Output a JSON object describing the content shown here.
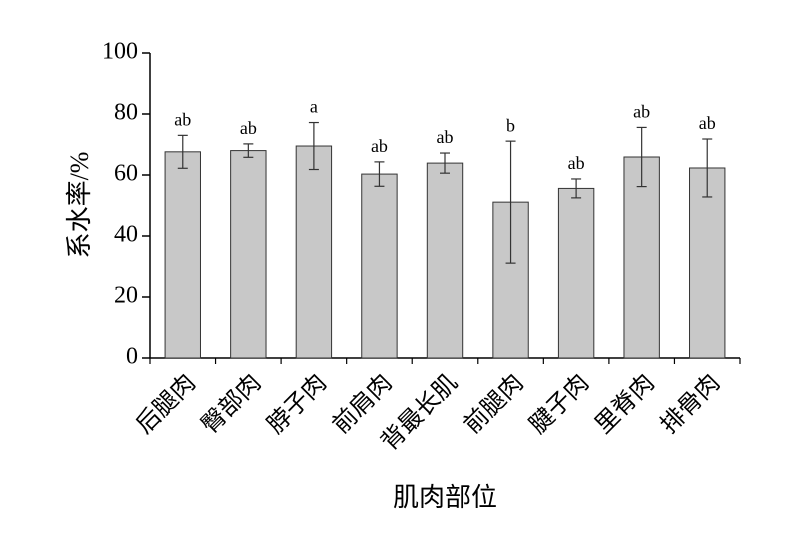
{
  "chart_data": {
    "type": "bar",
    "y_label": "系水率/%",
    "x_label": "肌肉部位",
    "categories": [
      "后腿肉",
      "臀部肉",
      "脖子肉",
      "前肩肉",
      "背最长肌",
      "前腿肉",
      "腱子肉",
      "里脊肉",
      "排骨肉"
    ],
    "values": [
      67.6,
      68.0,
      69.5,
      60.3,
      63.9,
      51.1,
      55.6,
      65.9,
      62.3
    ],
    "errors": [
      5.4,
      2.2,
      7.7,
      4.0,
      3.3,
      20.0,
      3.1,
      9.7,
      9.5
    ],
    "significance_letters": [
      "ab",
      "ab",
      "a",
      "ab",
      "ab",
      "b",
      "ab",
      "ab",
      "ab"
    ],
    "color": "#c8c8c8",
    "ylim": [
      0,
      100
    ],
    "yticks": [
      0,
      20,
      40,
      60,
      80,
      100
    ],
    "grid": false
  }
}
